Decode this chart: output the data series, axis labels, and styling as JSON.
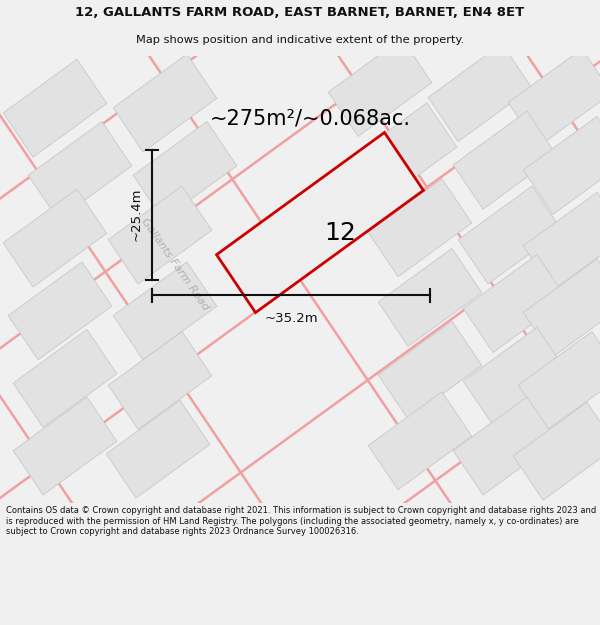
{
  "title_line1": "12, GALLANTS FARM ROAD, EAST BARNET, BARNET, EN4 8ET",
  "title_line2": "Map shows position and indicative extent of the property.",
  "area_label": "~275m²/~0.068ac.",
  "property_number": "12",
  "dim_width": "~35.2m",
  "dim_height": "~25.4m",
  "road_label": "Gallants Farm Road",
  "copyright_text": "Contains OS data © Crown copyright and database right 2021. This information is subject to Crown copyright and database rights 2023 and is reproduced with the permission of HM Land Registry. The polygons (including the associated geometry, namely x, y co-ordinates) are subject to Crown copyright and database rights 2023 Ordnance Survey 100026316.",
  "bg_color": "#f0f0f0",
  "map_bg": "#f8f8f8",
  "building_fill": "#e2e2e2",
  "building_edge": "#c8c8c8",
  "road_line_color": "#f0a0a0",
  "property_fill": "#eeeeee",
  "property_edge": "#cc0000",
  "dim_color": "#111111",
  "title_color": "#111111",
  "road_label_color": "#b0b0b0"
}
